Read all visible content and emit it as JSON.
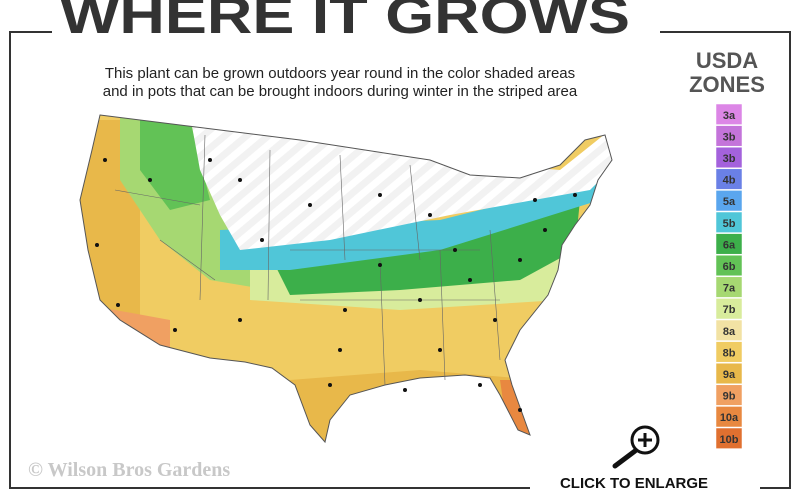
{
  "header": {
    "title": "WHERE IT GROWS",
    "subtitle_line1": "This plant can be grown outdoors year round in the color shaded areas",
    "subtitle_line2": "and in pots that can be brought indoors during winter in the striped area"
  },
  "legend": {
    "title_line1": "USDA",
    "title_line2": "ZONES",
    "zones": [
      {
        "label": "3a",
        "color": "#dc86e6"
      },
      {
        "label": "3b",
        "color": "#c474da"
      },
      {
        "label": "3b",
        "color": "#a462dc"
      },
      {
        "label": "4b",
        "color": "#6a80e6"
      },
      {
        "label": "5a",
        "color": "#5aa6ee"
      },
      {
        "label": "5b",
        "color": "#50c6d8"
      },
      {
        "label": "6a",
        "color": "#3caf4a"
      },
      {
        "label": "6b",
        "color": "#62c256"
      },
      {
        "label": "7a",
        "color": "#a6d872"
      },
      {
        "label": "7b",
        "color": "#d8ec9c"
      },
      {
        "label": "8a",
        "color": "#f2e2a4"
      },
      {
        "label": "8b",
        "color": "#f0cc62"
      },
      {
        "label": "9a",
        "color": "#e8b84a"
      },
      {
        "label": "9b",
        "color": "#f0a062"
      },
      {
        "label": "10a",
        "color": "#e88840"
      },
      {
        "label": "10b",
        "color": "#e07030"
      }
    ]
  },
  "watermark": "© Wilson Bros Gardens",
  "button": {
    "label": "CLICK TO ENLARGE"
  }
}
